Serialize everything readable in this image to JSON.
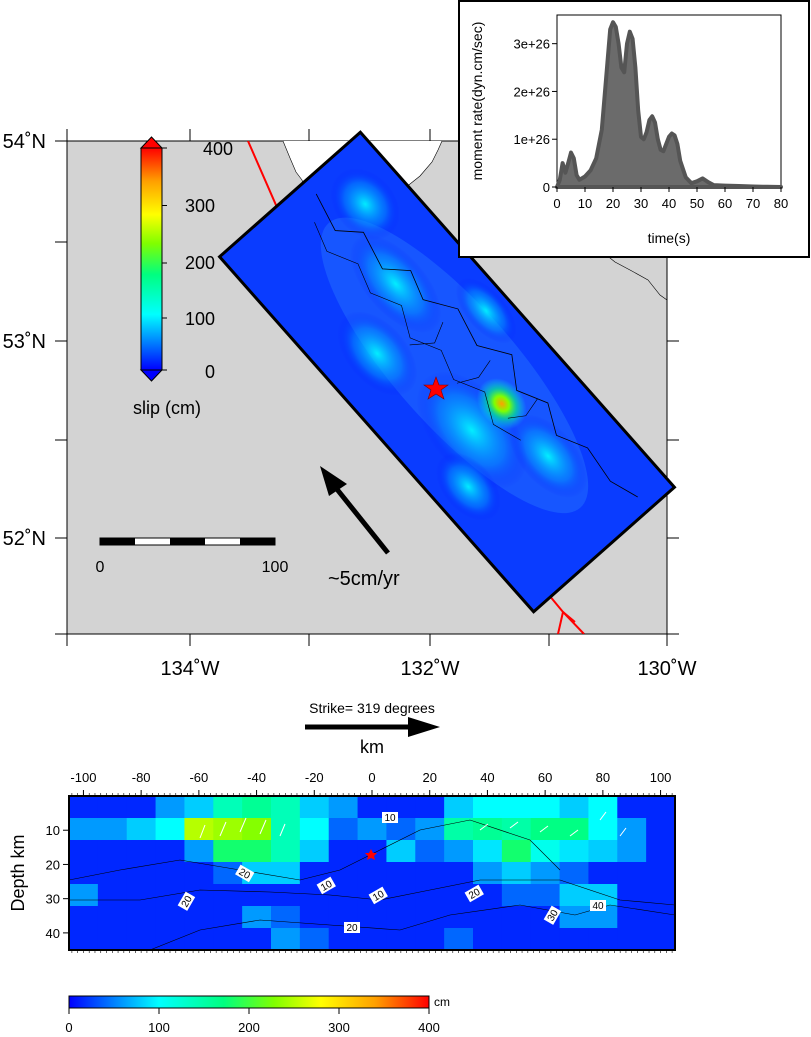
{
  "colors": {
    "land": "#d3d3d3",
    "fault_line": "#ff0000",
    "epicenter": "#ff0000",
    "inset_fill": "#6b6b6b",
    "inset_line": "#555555",
    "colormap_stops": [
      "#0000ff",
      "#0090ff",
      "#00ffff",
      "#00ff80",
      "#80ff00",
      "#ffff00",
      "#ffa000",
      "#ff0000"
    ]
  },
  "map": {
    "lon_labels": [
      "134˚W",
      "132˚W",
      "130˚W"
    ],
    "lat_labels": [
      "54˚N",
      "53˚N",
      "52˚N"
    ],
    "scale_bar": {
      "start_label": "0",
      "end_label": "100"
    },
    "plate_arrow_label": "~5cm/yr",
    "slip_colorbar": {
      "tick_labels": [
        "400",
        "300",
        "200",
        "100",
        "0"
      ],
      "label": "slip (cm)",
      "range": [
        0,
        400
      ]
    }
  },
  "chart_data": [
    {
      "type": "area",
      "xlabel": "time(s)",
      "ylabel": "moment rate(dyn.cm/sec)",
      "xlim": [
        0,
        80
      ],
      "ylim": [
        0,
        3.6e+26
      ],
      "x_ticks": [
        "0",
        "10",
        "20",
        "30",
        "40",
        "50",
        "60",
        "70",
        "80"
      ],
      "y_ticks": [
        "0",
        "1e+26",
        "2e+26",
        "3e+26"
      ],
      "x": [
        0,
        1,
        2,
        3,
        4,
        5,
        6,
        7,
        8,
        10,
        12,
        14,
        16,
        18,
        19,
        20,
        21,
        22,
        23,
        24,
        25,
        26,
        27,
        28,
        29,
        30,
        31,
        32,
        33,
        34,
        35,
        36,
        37,
        38,
        39,
        40,
        41,
        42,
        43,
        44,
        46,
        48,
        50,
        52,
        54,
        56,
        60,
        65,
        70,
        75,
        80
      ],
      "y": [
        0,
        1.5e+25,
        5e+25,
        3e+25,
        5e+25,
        7.2e+25,
        6e+25,
        2.5e+25,
        1.5e+25,
        2.2e+25,
        3.5e+25,
        6e+25,
        1.2e+26,
        2.6e+26,
        3.3e+26,
        3.45e+26,
        3.35e+26,
        3e+26,
        2.5e+26,
        2.4e+26,
        3e+26,
        3.25e+26,
        3.1e+26,
        2.5e+26,
        1.6e+26,
        1.05e+26,
        1e+26,
        1.15e+26,
        1.4e+26,
        1.48e+26,
        1.35e+26,
        1e+26,
        7.8e+25,
        7.5e+25,
        9e+25,
        1.05e+26,
        1.12e+26,
        1.08e+26,
        9e+25,
        5.5e+25,
        2e+25,
        8e+24,
        1.2e+25,
        1.8e+25,
        1e+25,
        4e+24,
        3e+24,
        2e+24,
        1e+24,
        5e+23,
        0
      ]
    },
    {
      "type": "heatmap",
      "title": "Strike= 319 degrees",
      "xlabel": "km",
      "ylabel": "Depth km",
      "xlim": [
        -105,
        105
      ],
      "ylim": [
        45,
        0
      ],
      "x_ticks": [
        "-100",
        "-80",
        "-60",
        "-40",
        "-20",
        "0",
        "20",
        "40",
        "60",
        "80",
        "100"
      ],
      "y_ticks": [
        "10",
        "20",
        "30",
        "40"
      ],
      "grid_rows": 7,
      "grid_cols": 21,
      "cell_km": 10,
      "slip_cm": [
        [
          15,
          15,
          15,
          60,
          80,
          140,
          160,
          140,
          80,
          60,
          15,
          15,
          15,
          80,
          100,
          100,
          100,
          80,
          100,
          15,
          15
        ],
        [
          60,
          60,
          80,
          100,
          250,
          240,
          230,
          140,
          100,
          40,
          60,
          40,
          60,
          150,
          160,
          150,
          170,
          170,
          100,
          60,
          15
        ],
        [
          15,
          15,
          15,
          15,
          60,
          180,
          180,
          140,
          80,
          15,
          15,
          80,
          40,
          60,
          90,
          180,
          110,
          90,
          80,
          60,
          15
        ],
        [
          15,
          15,
          15,
          15,
          15,
          40,
          80,
          80,
          15,
          15,
          15,
          15,
          15,
          15,
          60,
          80,
          60,
          40,
          15,
          15,
          15
        ],
        [
          60,
          15,
          15,
          15,
          15,
          15,
          15,
          15,
          15,
          15,
          15,
          15,
          15,
          15,
          15,
          40,
          40,
          80,
          80,
          15,
          15
        ],
        [
          15,
          15,
          15,
          15,
          15,
          15,
          60,
          40,
          15,
          15,
          15,
          15,
          15,
          15,
          15,
          15,
          15,
          60,
          60,
          15,
          15
        ],
        [
          15,
          15,
          15,
          15,
          15,
          15,
          15,
          60,
          40,
          15,
          15,
          15,
          15,
          40,
          15,
          15,
          15,
          15,
          15,
          15,
          15
        ]
      ],
      "contour_labels": [
        "10",
        "20",
        "10",
        "10",
        "20",
        "20",
        "20",
        "30",
        "40"
      ],
      "colorbar": {
        "tick_labels": [
          "0",
          "100",
          "200",
          "300",
          "400"
        ],
        "unit": "cm",
        "range": [
          0,
          400
        ]
      }
    }
  ]
}
